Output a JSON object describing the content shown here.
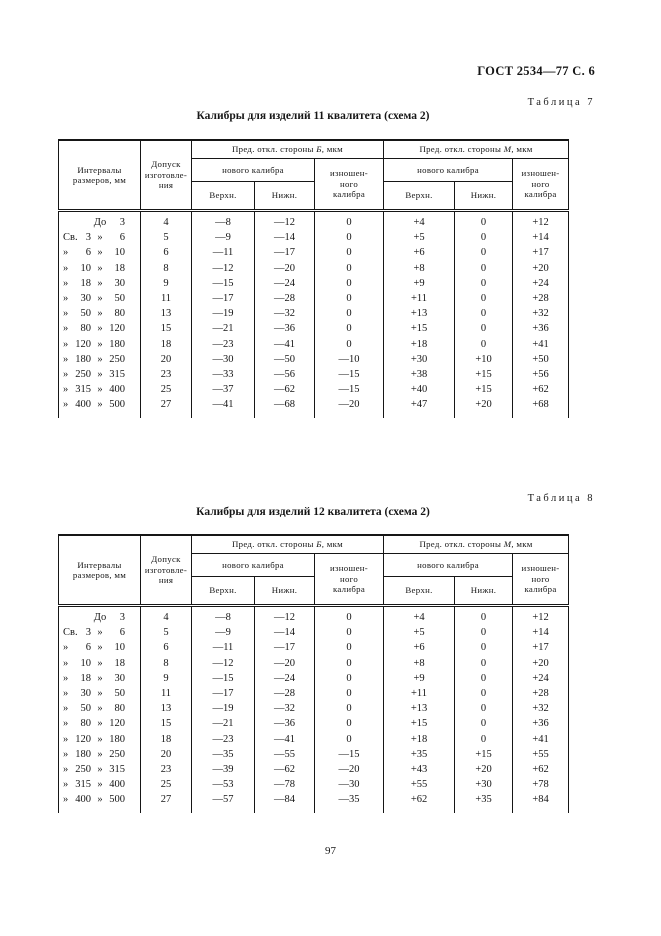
{
  "page": {
    "doc_header": "ГОСТ 2534—77 С. 6",
    "page_number": "97"
  },
  "tables": [
    {
      "table_label": "Таблица 7",
      "title": "Калибры для изделий 11 квалитета (схема 2)",
      "header": {
        "col_intervals": "Интервалы\nразмеров, мм",
        "col_tolerance": "Допуск\nизготовле-\nния",
        "group_b": {
          "prefix": "Пред. откл. стороны ",
          "var": "Б",
          "suffix": ", мкм"
        },
        "group_m": {
          "prefix": "Пред. откл. стороны ",
          "var": "М",
          "suffix": ", мкм"
        },
        "new_gauge": "нового калибра",
        "worn_gauge": "изношен-\nного\nкалибра",
        "upper": "Верхн.",
        "lower": "Нижн."
      },
      "rows": [
        {
          "interval": [
            "",
            "",
            "До",
            "3"
          ],
          "values": [
            "4",
            "—8",
            "—12",
            "0",
            "+4",
            "0",
            "+12"
          ]
        },
        {
          "interval": [
            "Св.",
            "3",
            "»",
            "6"
          ],
          "values": [
            "5",
            "—9",
            "—14",
            "0",
            "+5",
            "0",
            "+14"
          ]
        },
        {
          "interval": [
            "»",
            "6",
            "»",
            "10"
          ],
          "values": [
            "6",
            "—11",
            "—17",
            "0",
            "+6",
            "0",
            "+17"
          ]
        },
        {
          "interval": [
            "»",
            "10",
            "»",
            "18"
          ],
          "values": [
            "8",
            "—12",
            "—20",
            "0",
            "+8",
            "0",
            "+20"
          ]
        },
        {
          "interval": [
            "»",
            "18",
            "»",
            "30"
          ],
          "values": [
            "9",
            "—15",
            "—24",
            "0",
            "+9",
            "0",
            "+24"
          ]
        },
        {
          "interval": [
            "»",
            "30",
            "»",
            "50"
          ],
          "values": [
            "11",
            "—17",
            "—28",
            "0",
            "+11",
            "0",
            "+28"
          ]
        },
        {
          "interval": [
            "»",
            "50",
            "»",
            "80"
          ],
          "values": [
            "13",
            "—19",
            "—32",
            "0",
            "+13",
            "0",
            "+32"
          ]
        },
        {
          "interval": [
            "»",
            "80",
            "»",
            "120"
          ],
          "values": [
            "15",
            "—21",
            "—36",
            "0",
            "+15",
            "0",
            "+36"
          ]
        },
        {
          "interval": [
            "»",
            "120",
            "»",
            "180"
          ],
          "values": [
            "18",
            "—23",
            "—41",
            "0",
            "+18",
            "0",
            "+41"
          ]
        },
        {
          "interval": [
            "»",
            "180",
            "»",
            "250"
          ],
          "values": [
            "20",
            "—30",
            "—50",
            "—10",
            "+30",
            "+10",
            "+50"
          ]
        },
        {
          "interval": [
            "»",
            "250",
            "»",
            "315"
          ],
          "values": [
            "23",
            "—33",
            "—56",
            "—15",
            "+38",
            "+15",
            "+56"
          ]
        },
        {
          "interval": [
            "»",
            "315",
            "»",
            "400"
          ],
          "values": [
            "25",
            "—37",
            "—62",
            "—15",
            "+40",
            "+15",
            "+62"
          ]
        },
        {
          "interval": [
            "»",
            "400",
            "»",
            "500"
          ],
          "values": [
            "27",
            "—41",
            "—68",
            "—20",
            "+47",
            "+20",
            "+68"
          ]
        }
      ]
    },
    {
      "table_label": "Таблица 8",
      "title": "Калибры для изделий 12 квалитета (схема 2)",
      "header": {
        "col_intervals": "Интервалы\nразмеров, мм",
        "col_tolerance": "Допуск\nизготовле-\nния",
        "group_b": {
          "prefix": "Пред. откл. стороны ",
          "var": "Б",
          "suffix": ", мкм"
        },
        "group_m": {
          "prefix": "Пред. откл. стороны ",
          "var": "М",
          "suffix": ", мкм"
        },
        "new_gauge": "нового калибра",
        "worn_gauge": "изношен-\nного\nкалибра",
        "upper": "Верхн.",
        "lower": "Нижн."
      },
      "rows": [
        {
          "interval": [
            "",
            "",
            "До",
            "3"
          ],
          "values": [
            "4",
            "—8",
            "—12",
            "0",
            "+4",
            "0",
            "+12"
          ]
        },
        {
          "interval": [
            "Св.",
            "3",
            "»",
            "6"
          ],
          "values": [
            "5",
            "—9",
            "—14",
            "0",
            "+5",
            "0",
            "+14"
          ]
        },
        {
          "interval": [
            "»",
            "6",
            "»",
            "10"
          ],
          "values": [
            "6",
            "—11",
            "—17",
            "0",
            "+6",
            "0",
            "+17"
          ]
        },
        {
          "interval": [
            "»",
            "10",
            "»",
            "18"
          ],
          "values": [
            "8",
            "—12",
            "—20",
            "0",
            "+8",
            "0",
            "+20"
          ]
        },
        {
          "interval": [
            "»",
            "18",
            "»",
            "30"
          ],
          "values": [
            "9",
            "—15",
            "—24",
            "0",
            "+9",
            "0",
            "+24"
          ]
        },
        {
          "interval": [
            "»",
            "30",
            "»",
            "50"
          ],
          "values": [
            "11",
            "—17",
            "—28",
            "0",
            "+11",
            "0",
            "+28"
          ]
        },
        {
          "interval": [
            "»",
            "50",
            "»",
            "80"
          ],
          "values": [
            "13",
            "—19",
            "—32",
            "0",
            "+13",
            "0",
            "+32"
          ]
        },
        {
          "interval": [
            "»",
            "80",
            "»",
            "120"
          ],
          "values": [
            "15",
            "—21",
            "—36",
            "0",
            "+15",
            "0",
            "+36"
          ]
        },
        {
          "interval": [
            "»",
            "120",
            "»",
            "180"
          ],
          "values": [
            "18",
            "—23",
            "—41",
            "0",
            "+18",
            "0",
            "+41"
          ]
        },
        {
          "interval": [
            "»",
            "180",
            "»",
            "250"
          ],
          "values": [
            "20",
            "—35",
            "—55",
            "—15",
            "+35",
            "+15",
            "+55"
          ]
        },
        {
          "interval": [
            "»",
            "250",
            "»",
            "315"
          ],
          "values": [
            "23",
            "—39",
            "—62",
            "—20",
            "+43",
            "+20",
            "+62"
          ]
        },
        {
          "interval": [
            "»",
            "315",
            "»",
            "400"
          ],
          "values": [
            "25",
            "—53",
            "—78",
            "—30",
            "+55",
            "+30",
            "+78"
          ]
        },
        {
          "interval": [
            "»",
            "400",
            "»",
            "500"
          ],
          "values": [
            "27",
            "—57",
            "—84",
            "—35",
            "+62",
            "+35",
            "+84"
          ]
        }
      ]
    }
  ]
}
